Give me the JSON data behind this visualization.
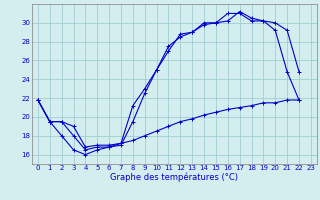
{
  "background_color": "#d4eef0",
  "grid_color": "#a0cdd0",
  "line_color": "#0000cc",
  "xlabel": "Graphe des températures (°C)",
  "xlim": [
    -0.5,
    23.5
  ],
  "ylim": [
    15.0,
    32.0
  ],
  "yticks": [
    16,
    18,
    20,
    22,
    24,
    26,
    28,
    30
  ],
  "xticks": [
    0,
    1,
    2,
    3,
    4,
    5,
    6,
    7,
    8,
    9,
    10,
    11,
    12,
    13,
    14,
    15,
    16,
    17,
    18,
    19,
    20,
    21,
    22,
    23
  ],
  "series1_y": [
    21.8,
    19.5,
    18.0,
    16.5,
    16.0,
    16.5,
    16.8,
    17.0,
    19.5,
    22.5,
    25.0,
    27.5,
    28.5,
    29.0,
    30.0,
    30.0,
    31.0,
    31.0,
    30.2,
    30.2,
    29.2,
    24.8,
    21.8,
    null
  ],
  "series2_y": [
    21.8,
    19.5,
    19.5,
    18.0,
    16.5,
    16.8,
    16.8,
    17.2,
    21.2,
    23.0,
    25.0,
    27.0,
    28.8,
    29.0,
    29.8,
    30.0,
    30.2,
    31.2,
    30.5,
    30.2,
    30.0,
    29.2,
    24.8,
    null
  ],
  "series3_y": [
    21.8,
    19.5,
    19.5,
    19.0,
    16.8,
    17.0,
    17.0,
    17.2,
    17.5,
    18.0,
    18.5,
    19.0,
    19.5,
    19.8,
    20.2,
    20.5,
    20.8,
    21.0,
    21.2,
    21.5,
    21.5,
    21.8,
    21.8,
    null
  ]
}
